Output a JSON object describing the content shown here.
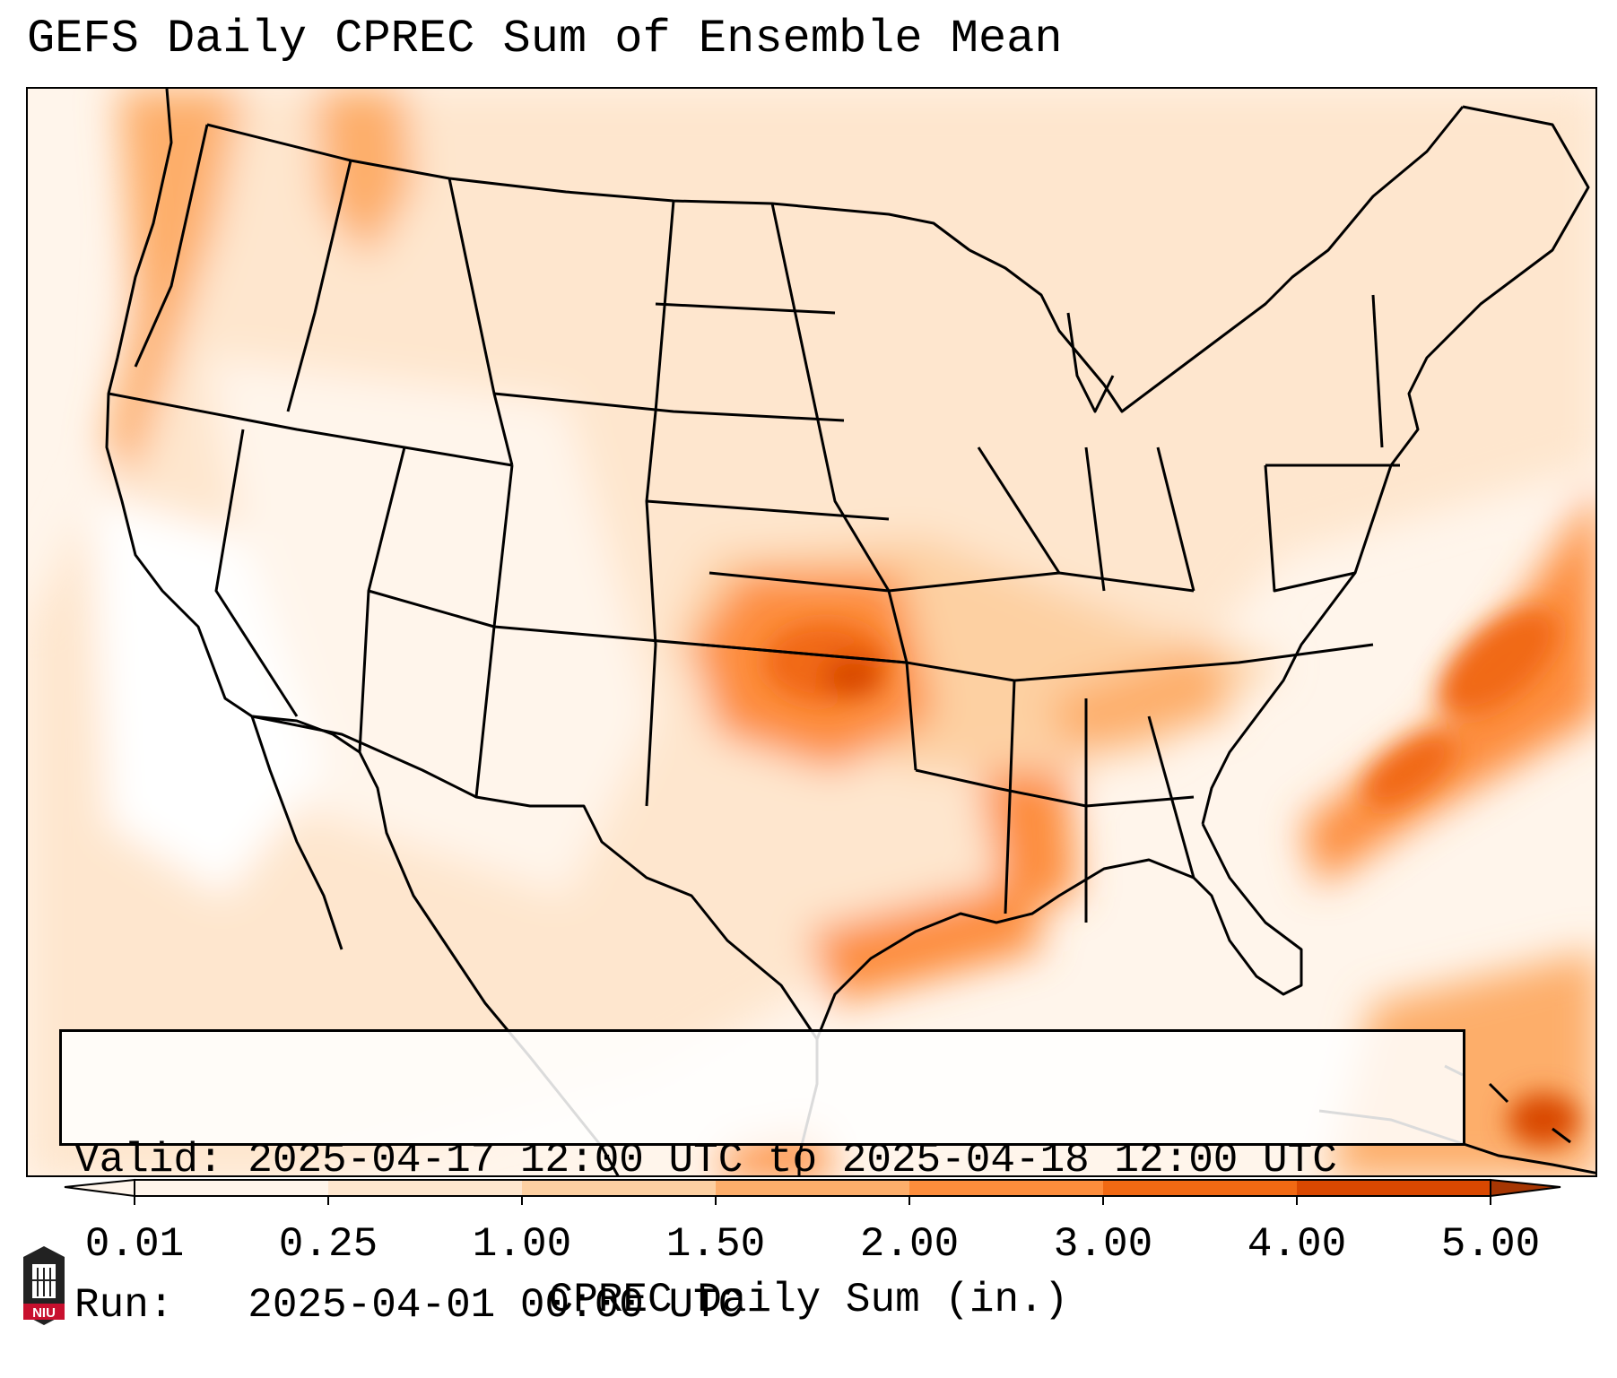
{
  "title": "GEFS Daily CPREC Sum of Ensemble Mean",
  "info": {
    "valid_line": "Valid: 2025-04-17 12:00 UTC to 2025-04-18 12:00 UTC",
    "run_line": "Run:   2025-04-01 00:00 UTC"
  },
  "colorbar": {
    "label": "CPREC Daily Sum (in.)",
    "ticks": [
      "0.01",
      "0.25",
      "1.00",
      "1.50",
      "2.00",
      "3.00",
      "4.00",
      "5.00"
    ],
    "colors": [
      "#fff5eb",
      "#fee6ce",
      "#fdd0a2",
      "#fdae6b",
      "#fd8d3c",
      "#f16913",
      "#d94801",
      "#a63603"
    ]
  },
  "map": {
    "features": [
      "west-coast-band",
      "oklahoma-maximum",
      "lower-mississippi-band",
      "gulf-coast-band",
      "atlantic-offshore-band",
      "caribbean-area"
    ]
  },
  "logo": {
    "text": "NIU"
  }
}
